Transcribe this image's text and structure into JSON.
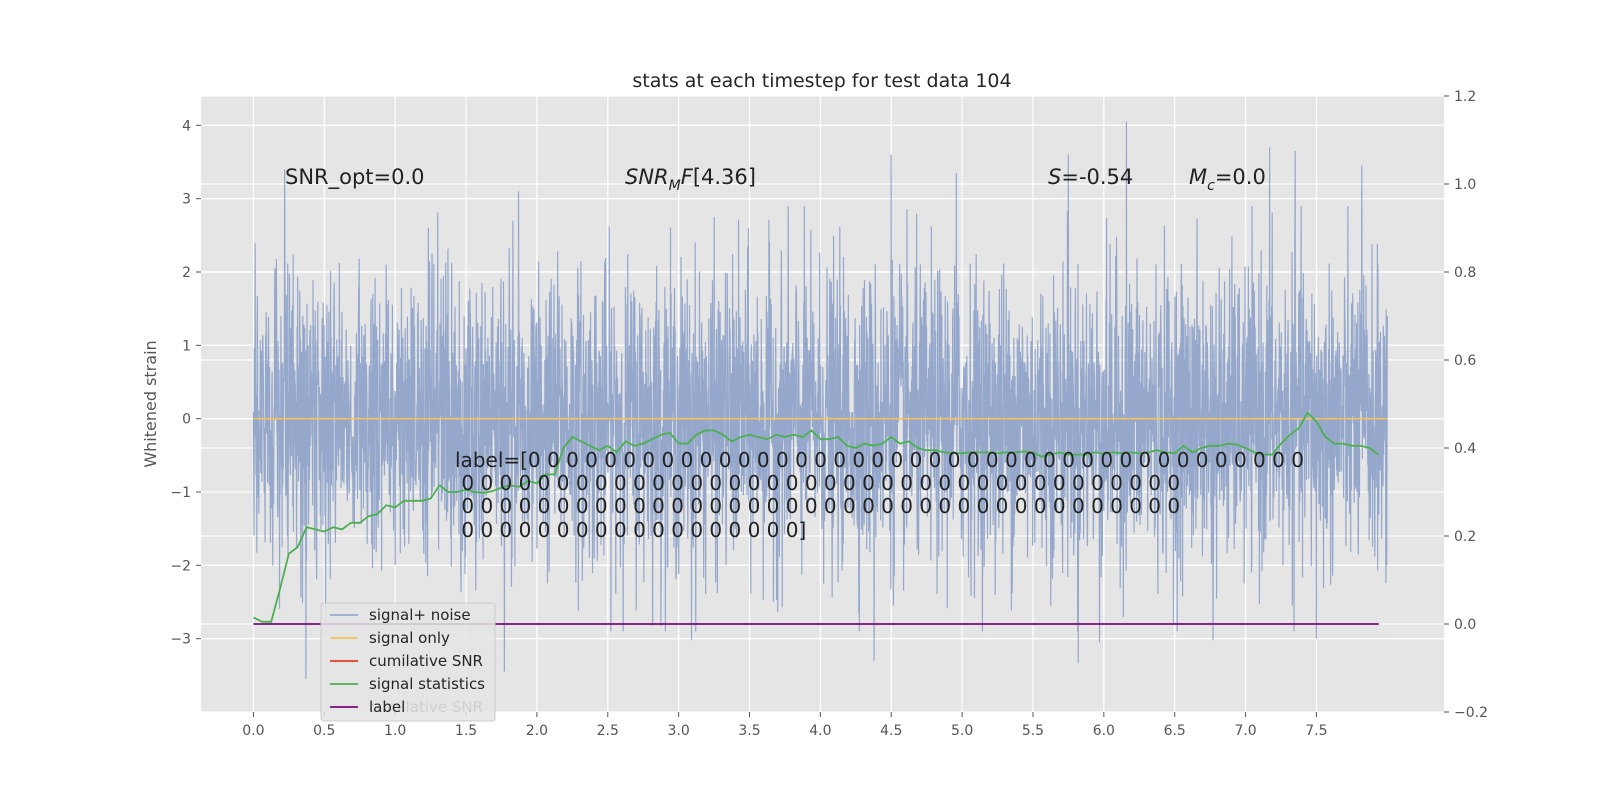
{
  "chart_data": {
    "type": "line",
    "title": "stats at each timestep for test data 104",
    "xlabel": "",
    "ylabel": "Whitened strain",
    "ylabel_right": "",
    "xlim": [
      -0.37,
      8.4
    ],
    "ylim": [
      -4.0,
      4.4
    ],
    "ylim_right": [
      -0.2,
      1.2
    ],
    "x_ticks": [
      "0.0",
      "0.5",
      "1.0",
      "1.5",
      "2.0",
      "2.5",
      "3.0",
      "3.5",
      "4.0",
      "4.5",
      "5.0",
      "5.5",
      "6.0",
      "6.5",
      "7.0",
      "7.5"
    ],
    "y_ticks": [
      "4",
      "3",
      "2",
      "1",
      "0",
      "−1",
      "−2",
      "−3"
    ],
    "y_ticks_right": [
      "1.2",
      "1.0",
      "0.8",
      "0.6",
      "0.4",
      "0.2",
      "0.0",
      "−0.2"
    ],
    "grid": true,
    "background": "#e5e5e5",
    "legend_position": "lower-left",
    "annotations": {
      "snr_opt": "SNR_opt=0.0",
      "snr_mf": "[4.36]",
      "stat": "=-0.54",
      "mc": "=0.0"
    },
    "label_text": [
      "label=[0 0 0 0 0 0 0 0 0 0 0 0 0 0 0 0 0 0 0 0 0 0 0 0 0 0 0 0 0 0 0 0 0 0 0 0 0 0 0 0 0",
      " 0 0 0 0 0 0 0 0 0 0 0 0 0 0 0 0 0 0 0 0 0 0 0 0 0 0 0 0 0 0 0 0 0 0 0 0 0 0",
      " 0 0 0 0 0 0 0 0 0 0 0 0 0 0 0 0 0 0 0 0 0 0 0 0 0 0 0 0 0 0 0 0 0 0 0 0 0 0",
      " 0 0 0 0 0 0 0 0 0 0 0 0 0 0 0 0 0 0]"
    ],
    "legend": [
      {
        "name": "signal+ noise",
        "color": "#95a8cc"
      },
      {
        "name": "signal only",
        "color": "#f5c15c"
      },
      {
        "name": "cumilative SNR",
        "color": "#e2401c"
      },
      {
        "name": "signal statistics",
        "color": "#4caf50"
      },
      {
        "name": "label",
        "color": "#7a0a7a"
      }
    ],
    "legend_overlap_text": "cumilative SNR",
    "series": [
      {
        "name": "signal+ noise",
        "axis": "left",
        "color": "#95a8cc",
        "x_range": [
          0.0,
          8.0
        ],
        "n_points": 4000,
        "sigma": 1.0,
        "extremes": [
          {
            "x": 0.22,
            "y": 3.4
          },
          {
            "x": 0.37,
            "y": -3.55
          },
          {
            "x": 1.77,
            "y": -3.45
          },
          {
            "x": 1.87,
            "y": 3.1
          },
          {
            "x": 3.09,
            "y": -3.02
          },
          {
            "x": 4.38,
            "y": -3.3
          },
          {
            "x": 4.5,
            "y": 3.6
          },
          {
            "x": 4.96,
            "y": 3.35
          },
          {
            "x": 5.75,
            "y": 3.6
          },
          {
            "x": 5.82,
            "y": -3.33
          },
          {
            "x": 5.97,
            "y": -3.05
          },
          {
            "x": 6.16,
            "y": 4.05
          },
          {
            "x": 6.77,
            "y": -3.02
          },
          {
            "x": 7.17,
            "y": 3.7
          },
          {
            "x": 7.35,
            "y": 3.65
          },
          {
            "x": 7.82,
            "y": 3.45
          },
          {
            "x": 7.5,
            "y": -3.0
          }
        ]
      },
      {
        "name": "signal only",
        "axis": "left",
        "color": "#f5c15c",
        "x": [
          0.0,
          8.0
        ],
        "y": [
          0.0,
          0.0
        ]
      },
      {
        "name": "signal statistics",
        "axis": "right",
        "color": "#4caf50",
        "x": [
          0.0,
          0.0625,
          0.125,
          0.1875,
          0.25,
          0.3125,
          0.375,
          0.4375,
          0.5,
          0.5625,
          0.625,
          0.6875,
          0.75,
          0.8125,
          0.875,
          0.9375,
          1.0,
          1.0625,
          1.125,
          1.1875,
          1.25,
          1.3125,
          1.375,
          1.4375,
          1.5,
          1.5625,
          1.625,
          1.6875,
          1.75,
          1.8125,
          1.875,
          1.9375,
          2.0,
          2.0625,
          2.125,
          2.1875,
          2.25,
          2.3125,
          2.375,
          2.4375,
          2.5,
          2.5625,
          2.625,
          2.6875,
          2.75,
          2.8125,
          2.875,
          2.9375,
          3.0,
          3.0625,
          3.125,
          3.1875,
          3.25,
          3.3125,
          3.375,
          3.4375,
          3.5,
          3.5625,
          3.625,
          3.6875,
          3.75,
          3.8125,
          3.875,
          3.9375,
          4.0,
          4.0625,
          4.125,
          4.1875,
          4.25,
          4.3125,
          4.375,
          4.4375,
          4.5,
          4.5625,
          4.625,
          4.6875,
          4.75,
          4.8125,
          4.875,
          4.9375,
          5.0,
          5.0625,
          5.125,
          5.1875,
          5.25,
          5.3125,
          5.375,
          5.4375,
          5.5,
          5.5625,
          5.625,
          5.6875,
          5.75,
          5.8125,
          5.875,
          5.9375,
          6.0,
          6.0625,
          6.125,
          6.1875,
          6.25,
          6.3125,
          6.375,
          6.4375,
          6.5,
          6.5625,
          6.625,
          6.6875,
          6.75,
          6.8125,
          6.875,
          6.9375,
          7.0,
          7.0625,
          7.125,
          7.1875,
          7.25,
          7.3125,
          7.375,
          7.4375,
          7.5,
          7.5625,
          7.625,
          7.6875,
          7.75,
          7.8125,
          7.875,
          7.9375
        ],
        "y": [
          0.015,
          0.005,
          0.005,
          0.08,
          0.16,
          0.175,
          0.22,
          0.215,
          0.21,
          0.22,
          0.215,
          0.23,
          0.23,
          0.245,
          0.25,
          0.27,
          0.265,
          0.28,
          0.28,
          0.28,
          0.285,
          0.315,
          0.3,
          0.3,
          0.305,
          0.3,
          0.298,
          0.302,
          0.31,
          0.315,
          0.312,
          0.325,
          0.32,
          0.34,
          0.34,
          0.4,
          0.425,
          0.415,
          0.405,
          0.395,
          0.405,
          0.39,
          0.415,
          0.405,
          0.41,
          0.42,
          0.43,
          0.435,
          0.41,
          0.41,
          0.43,
          0.44,
          0.44,
          0.43,
          0.415,
          0.425,
          0.43,
          0.425,
          0.42,
          0.43,
          0.425,
          0.43,
          0.425,
          0.44,
          0.42,
          0.42,
          0.425,
          0.405,
          0.4,
          0.41,
          0.405,
          0.41,
          0.425,
          0.41,
          0.415,
          0.4,
          0.395,
          0.395,
          0.39,
          0.388,
          0.388,
          0.39,
          0.39,
          0.39,
          0.388,
          0.39,
          0.39,
          0.392,
          0.39,
          0.38,
          0.385,
          0.39,
          0.385,
          0.385,
          0.385,
          0.39,
          0.387,
          0.39,
          0.388,
          0.39,
          0.388,
          0.39,
          0.395,
          0.39,
          0.388,
          0.405,
          0.39,
          0.4,
          0.405,
          0.405,
          0.41,
          0.408,
          0.4,
          0.39,
          0.385,
          0.385,
          0.41,
          0.43,
          0.445,
          0.48,
          0.46,
          0.425,
          0.41,
          0.41,
          0.405,
          0.405,
          0.4,
          0.385
        ]
      },
      {
        "name": "label",
        "axis": "right",
        "color": "#7a0a7a",
        "x": [
          0.0,
          7.94
        ],
        "y": [
          0.0,
          0.0
        ]
      }
    ]
  }
}
